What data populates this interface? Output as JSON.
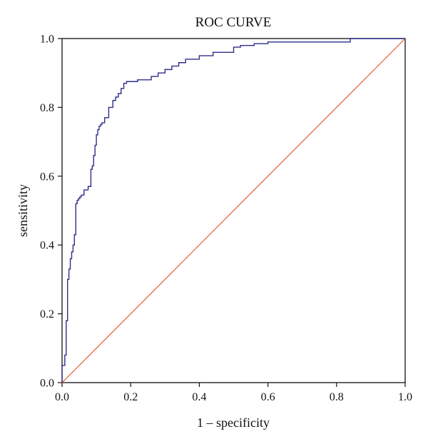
{
  "chart_data": {
    "type": "line",
    "title": "ROC CURVE",
    "xlabel": "1 – specificity",
    "ylabel": "sensitivity",
    "xlim": [
      0,
      1
    ],
    "ylim": [
      0,
      1
    ],
    "x_ticks": [
      "0.0",
      "0.2",
      "0.4",
      "0.6",
      "0.8",
      "1.0"
    ],
    "y_ticks": [
      "0.0",
      "0.2",
      "0.4",
      "0.6",
      "0.8",
      "1.0"
    ],
    "grid": false,
    "legend": "none",
    "series": [
      {
        "color": "#2e2e8c",
        "x": [
          0.0,
          0.0,
          0.008,
          0.008,
          0.012,
          0.012,
          0.016,
          0.016,
          0.02,
          0.02,
          0.024,
          0.024,
          0.028,
          0.028,
          0.032,
          0.032,
          0.036,
          0.036,
          0.04,
          0.04,
          0.044,
          0.044,
          0.048,
          0.048,
          0.052,
          0.052,
          0.056,
          0.056,
          0.064,
          0.064,
          0.076,
          0.076,
          0.084,
          0.084,
          0.088,
          0.088,
          0.092,
          0.092,
          0.096,
          0.096,
          0.1,
          0.1,
          0.104,
          0.104,
          0.108,
          0.108,
          0.112,
          0.112,
          0.116,
          0.116,
          0.124,
          0.124,
          0.136,
          0.136,
          0.148,
          0.148,
          0.156,
          0.156,
          0.164,
          0.164,
          0.172,
          0.172,
          0.18,
          0.18,
          0.188,
          0.188,
          0.22,
          0.22,
          0.26,
          0.26,
          0.28,
          0.28,
          0.3,
          0.3,
          0.32,
          0.32,
          0.34,
          0.34,
          0.36,
          0.36,
          0.4,
          0.4,
          0.44,
          0.44,
          0.5,
          0.5,
          0.52,
          0.52,
          0.56,
          0.56,
          0.6,
          0.6,
          0.84,
          0.84,
          1.0
        ],
        "y": [
          0.0,
          0.05,
          0.05,
          0.08,
          0.08,
          0.18,
          0.18,
          0.3,
          0.3,
          0.33,
          0.33,
          0.36,
          0.36,
          0.38,
          0.38,
          0.4,
          0.4,
          0.43,
          0.43,
          0.52,
          0.52,
          0.53,
          0.53,
          0.535,
          0.535,
          0.54,
          0.54,
          0.545,
          0.545,
          0.56,
          0.56,
          0.57,
          0.57,
          0.62,
          0.62,
          0.63,
          0.63,
          0.66,
          0.66,
          0.69,
          0.69,
          0.72,
          0.72,
          0.735,
          0.735,
          0.745,
          0.745,
          0.75,
          0.75,
          0.755,
          0.755,
          0.77,
          0.77,
          0.8,
          0.8,
          0.82,
          0.82,
          0.83,
          0.83,
          0.84,
          0.84,
          0.855,
          0.855,
          0.87,
          0.87,
          0.875,
          0.875,
          0.88,
          0.88,
          0.89,
          0.89,
          0.9,
          0.9,
          0.91,
          0.91,
          0.92,
          0.92,
          0.93,
          0.93,
          0.94,
          0.94,
          0.95,
          0.95,
          0.96,
          0.96,
          0.975,
          0.975,
          0.98,
          0.98,
          0.985,
          0.985,
          0.99,
          0.99,
          1.0,
          1.0
        ]
      },
      {
        "color": "#e0501e",
        "x": [
          0.0,
          1.0
        ],
        "y": [
          0.0,
          1.0
        ]
      }
    ]
  }
}
